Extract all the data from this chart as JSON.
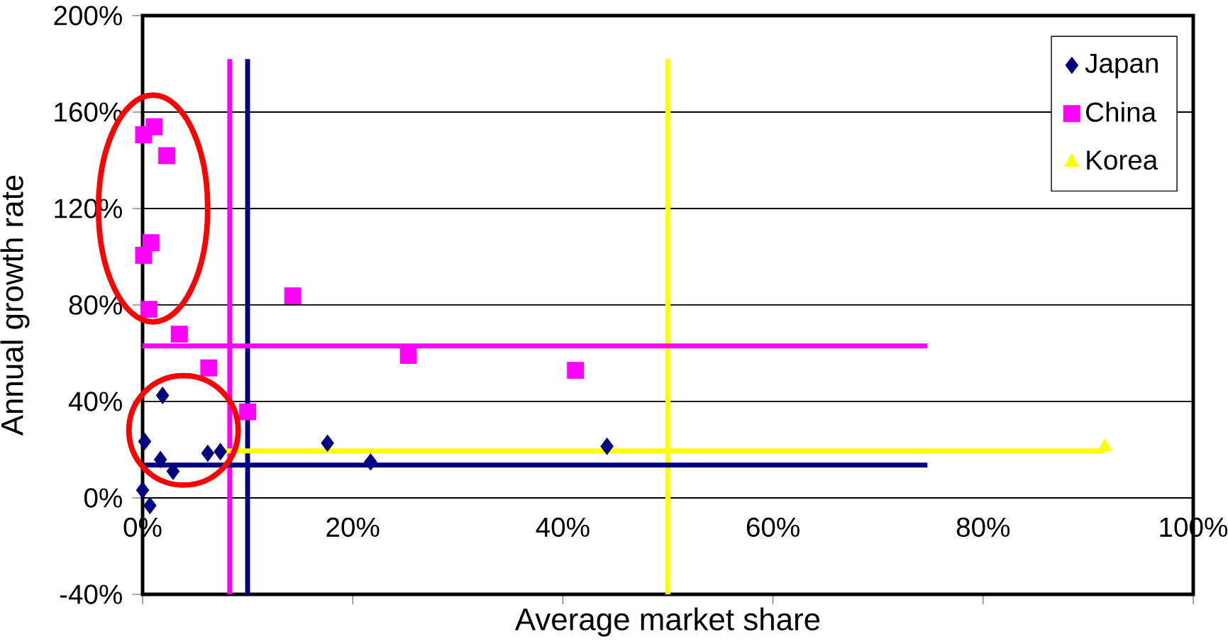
{
  "chart_data": {
    "type": "scatter",
    "xlabel": "Average market share",
    "ylabel": "Annual growth rate",
    "xlim": [
      0,
      100
    ],
    "ylim": [
      -40,
      200
    ],
    "xticks": [
      {
        "value": 0,
        "label": "0%"
      },
      {
        "value": 20,
        "label": "20%"
      },
      {
        "value": 40,
        "label": "40%"
      },
      {
        "value": 60,
        "label": "60%"
      },
      {
        "value": 80,
        "label": "80%"
      },
      {
        "value": 100,
        "label": "100%"
      }
    ],
    "yticks": [
      {
        "value": -40,
        "label": "-40%"
      },
      {
        "value": 0,
        "label": "0%"
      },
      {
        "value": 40,
        "label": "40%"
      },
      {
        "value": 80,
        "label": "80%"
      },
      {
        "value": 120,
        "label": "120%"
      },
      {
        "value": 160,
        "label": "160%"
      },
      {
        "value": 200,
        "label": "200%"
      }
    ],
    "grid": "y",
    "legend": "top right",
    "series": [
      {
        "type": "line",
        "color": "#ff00ff",
        "marker": "none",
        "x": [
          8.3,
          8.3
        ],
        "values": [
          182,
          -40
        ]
      },
      {
        "type": "line",
        "color": "#000080",
        "marker": "none",
        "x": [
          10,
          10
        ],
        "values": [
          182,
          -40
        ]
      },
      {
        "type": "line",
        "color": "#ffff00",
        "marker": "none",
        "x": [
          50,
          50
        ],
        "values": [
          182,
          -40
        ]
      },
      {
        "type": "line",
        "color": "#ff00ff",
        "marker": "none",
        "x": [
          0,
          74.7
        ],
        "values": [
          63,
          63
        ]
      },
      {
        "type": "line",
        "color": "#000080",
        "marker": "none",
        "x": [
          0,
          74.7
        ],
        "values": [
          13.6,
          13.6
        ]
      },
      {
        "type": "line",
        "color": "#ffff00",
        "marker": "none",
        "x": [
          7.7,
          91.5
        ],
        "values": [
          19.5,
          19.5
        ]
      },
      {
        "name": "Japan",
        "color": "#000080",
        "marker": "diamond",
        "x": [
          0.2,
          1.9,
          1.7,
          2.9,
          0,
          0.7,
          6.2,
          7.4,
          17.6,
          21.7,
          44.2
        ],
        "values": [
          23.4,
          42.5,
          15.9,
          11,
          3.2,
          -3.2,
          18.5,
          19.2,
          22.7,
          14.9,
          21.4
        ]
      },
      {
        "name": "China",
        "color": "#ff00ff",
        "marker": "square",
        "x": [
          0.1,
          1.1,
          2.3,
          0.8,
          0.1,
          0.6,
          3.5,
          6.3,
          10,
          14.3,
          25.3,
          41.2
        ],
        "values": [
          150.6,
          153.9,
          141.9,
          105.8,
          100.6,
          78.2,
          67.9,
          53.9,
          35.7,
          83.8,
          59.1,
          52.9
        ]
      },
      {
        "name": "Korea",
        "color": "#ffff00",
        "marker": "triangle",
        "x": [
          91.6
        ],
        "values": [
          21.1
        ]
      }
    ]
  }
}
